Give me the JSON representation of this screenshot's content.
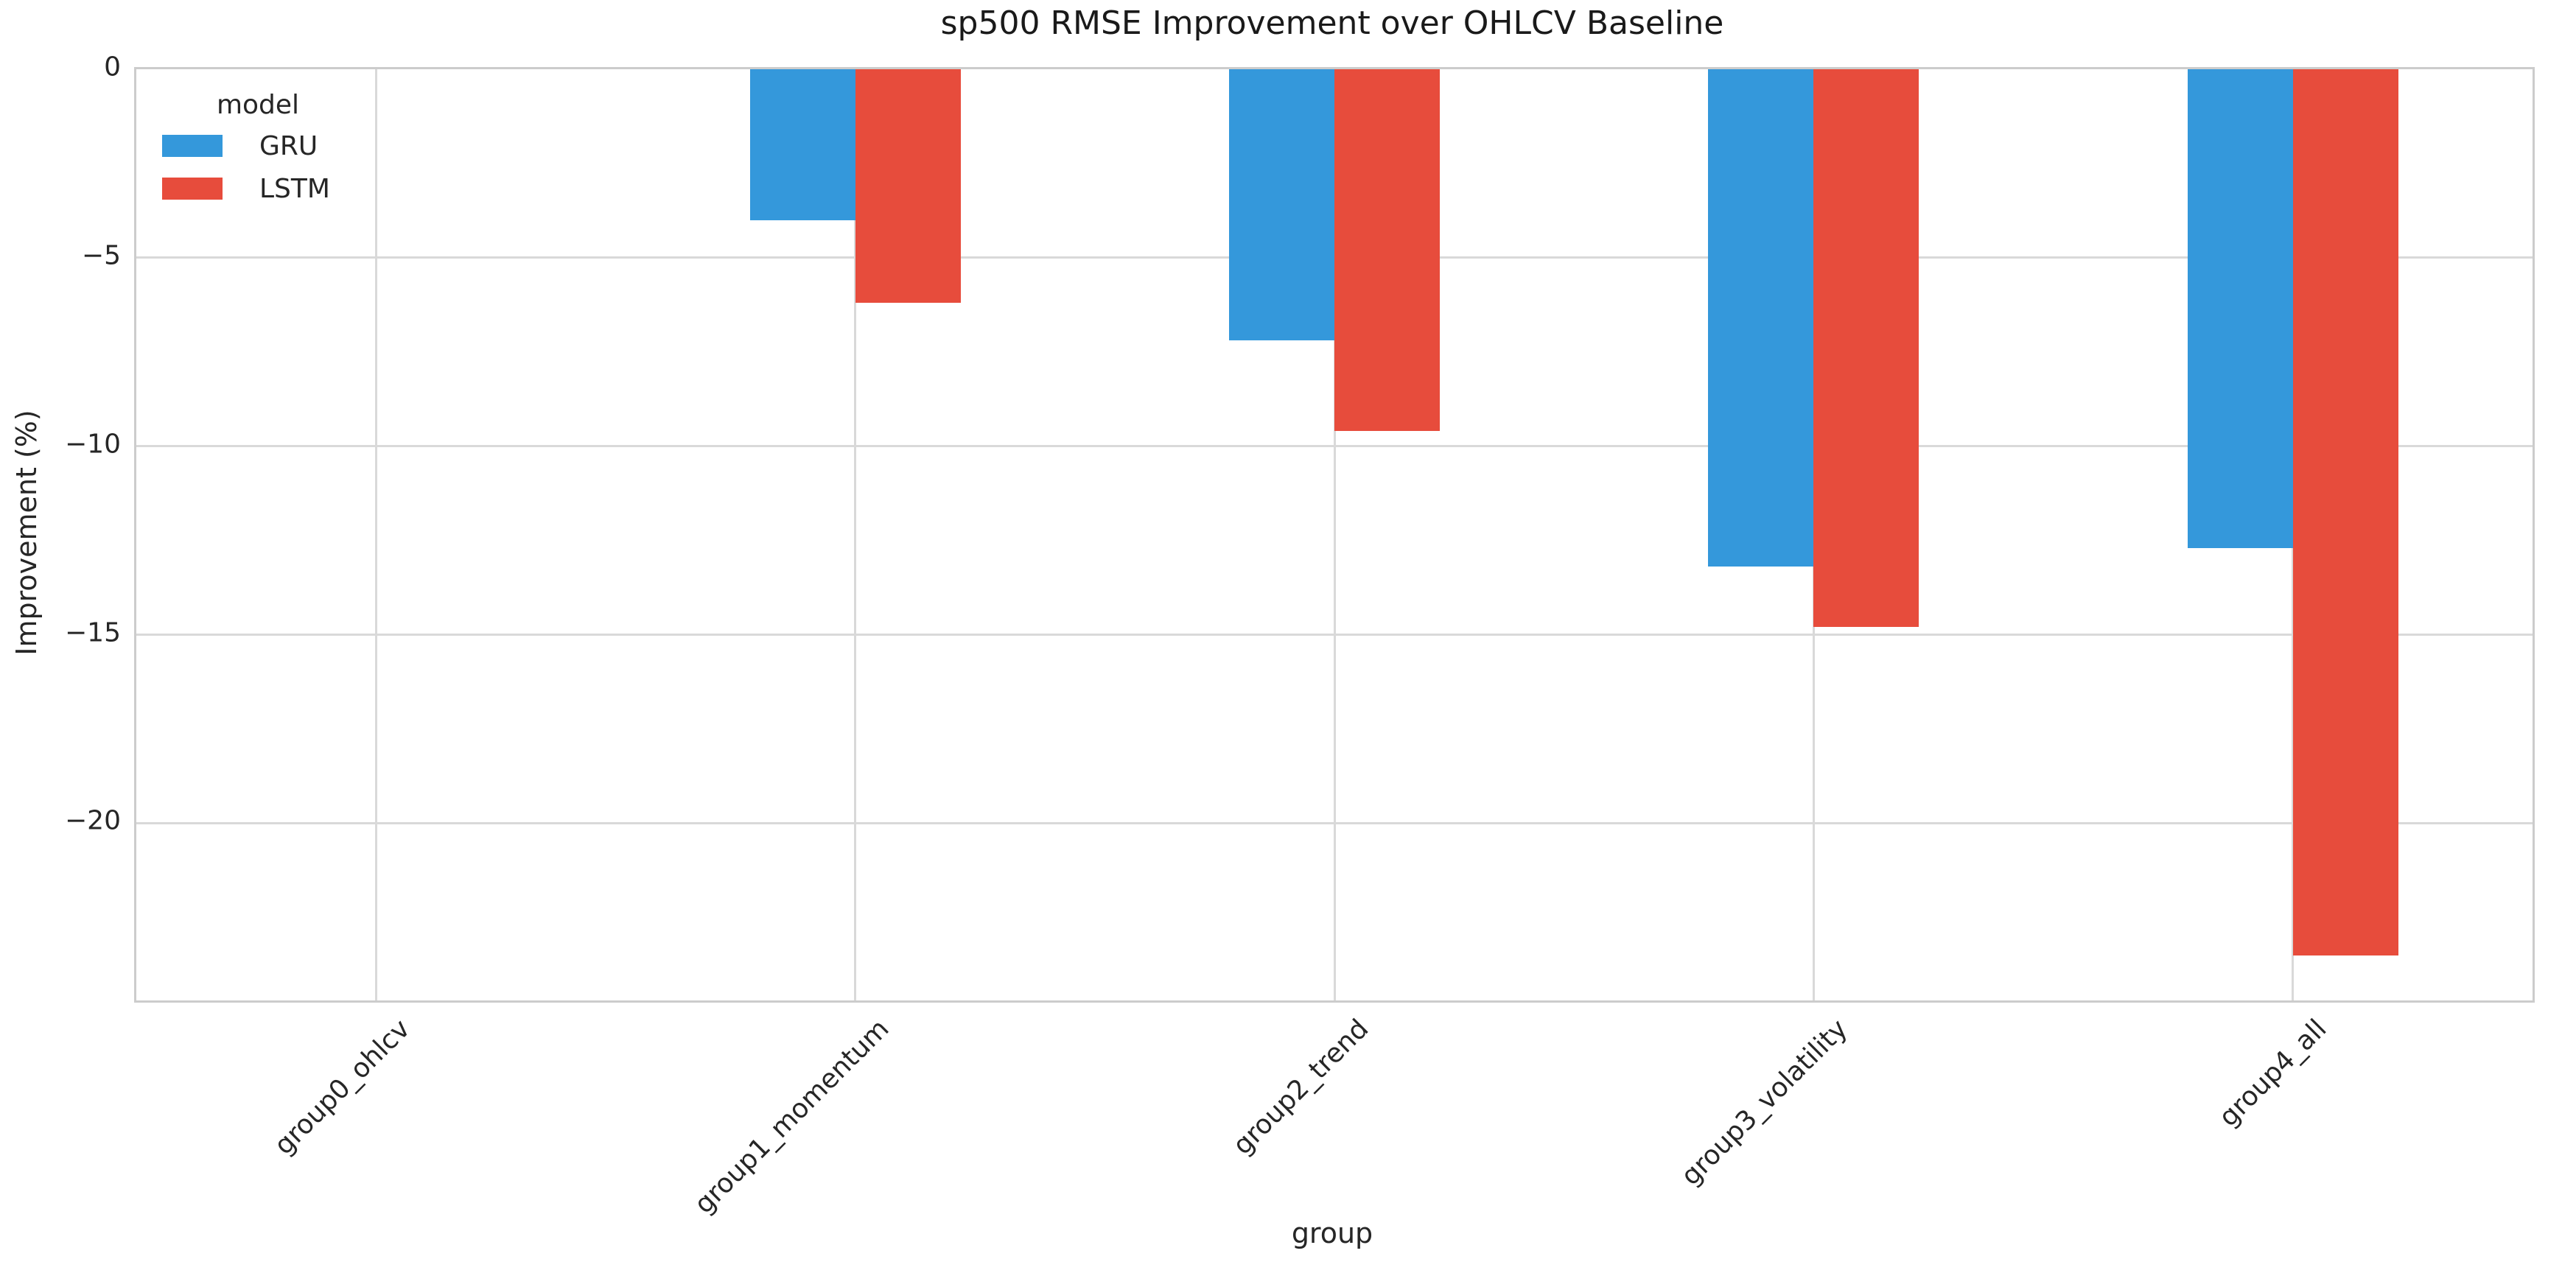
{
  "chart_data": {
    "type": "bar",
    "title": "sp500 RMSE Improvement over OHLCV Baseline",
    "xlabel": "group",
    "ylabel": "Improvement (%)",
    "categories": [
      "group0_ohlcv",
      "group1_momentum",
      "group2_trend",
      "group3_volatility",
      "group4_all"
    ],
    "series": [
      {
        "name": "GRU",
        "color": "#3498db",
        "values": [
          0.0,
          -4.0,
          -7.2,
          -13.2,
          -12.7
        ]
      },
      {
        "name": "LSTM",
        "color": "#e74c3c",
        "values": [
          0.0,
          -6.2,
          -9.6,
          -14.8,
          -23.5
        ]
      }
    ],
    "legend": {
      "title": "model",
      "position": "upper-left",
      "frame": false
    },
    "yticks": [
      0,
      -5,
      -10,
      -15,
      -20
    ],
    "ylim": [
      -24.7,
      0
    ],
    "grid": true,
    "grid_color": "#d9d9d9",
    "background": "#ffffff",
    "text_color": "#262626"
  }
}
